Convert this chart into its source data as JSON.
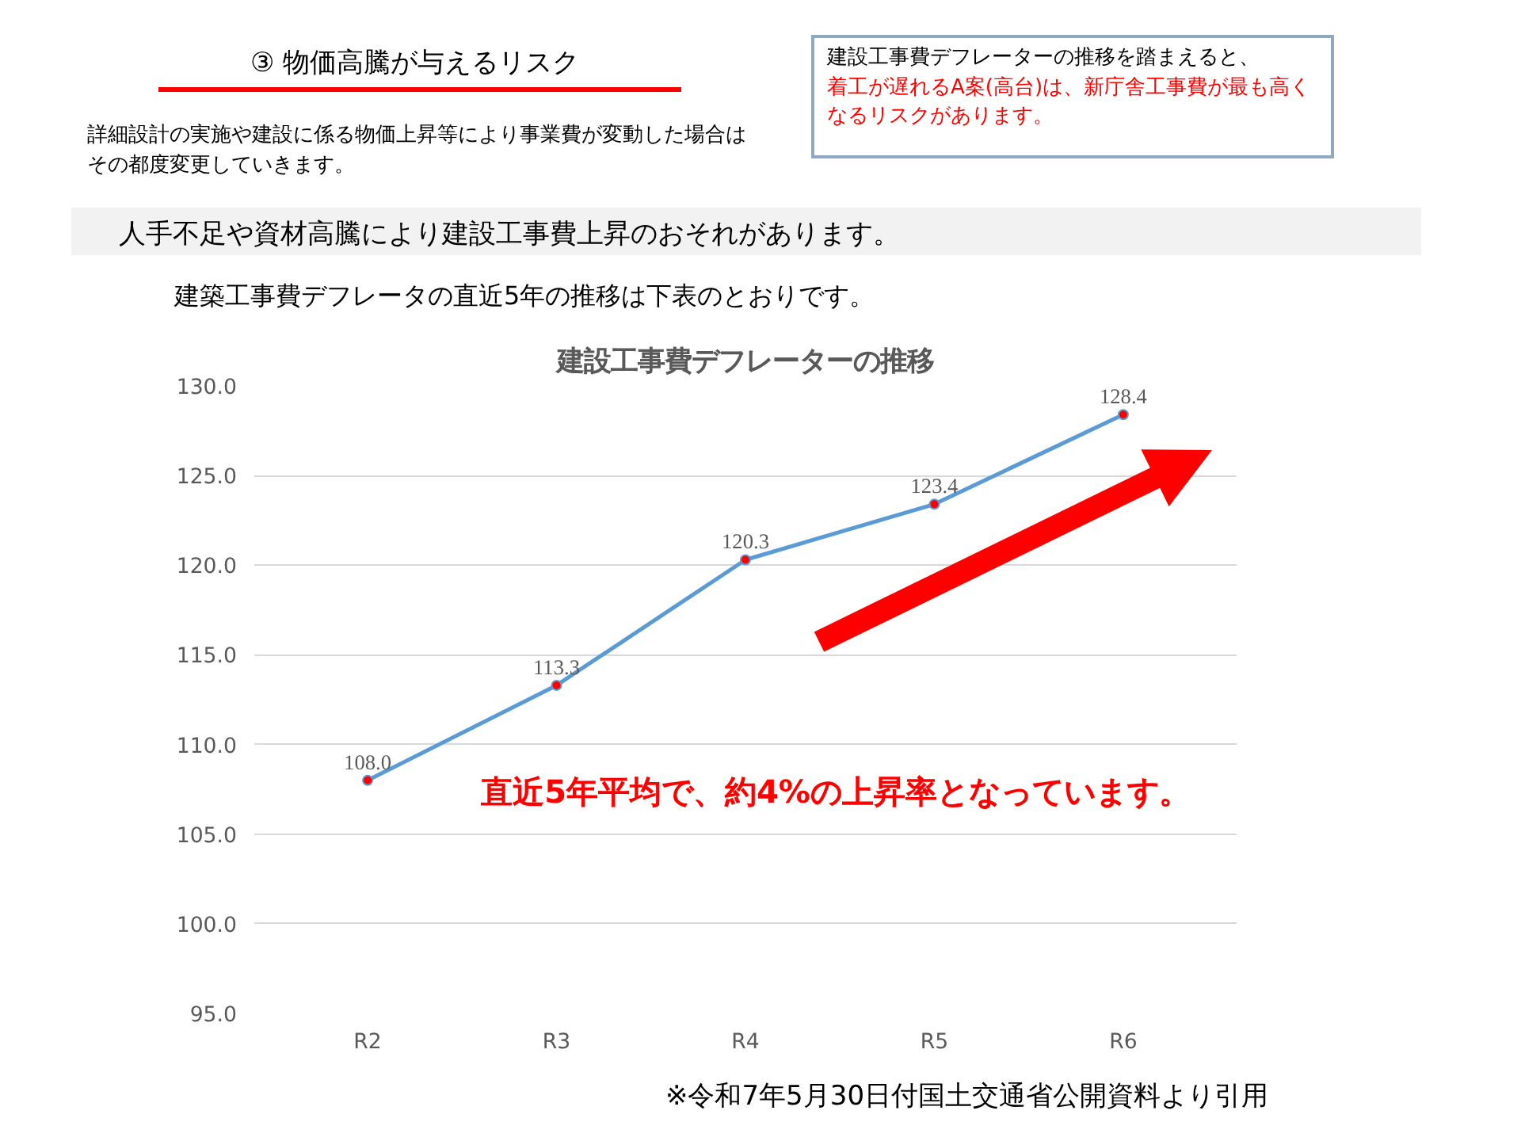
{
  "chart_data": {
    "type": "line",
    "title": "建設工事費デフレーターの推移",
    "categories": [
      "R2",
      "R3",
      "R4",
      "R5",
      "R6"
    ],
    "series": [
      {
        "color": "#5b9bd5",
        "values": [
          108.0,
          113.3,
          120.3,
          123.4,
          128.4
        ],
        "value_labels": [
          "108.0",
          "113.3",
          "120.3",
          "123.4",
          "128.4"
        ]
      }
    ],
    "ylim": [
      95,
      130
    ],
    "yticks": [
      {
        "value": 95,
        "label": "95.0"
      },
      {
        "value": 100,
        "label": "100.0"
      },
      {
        "value": 105,
        "label": "105.0"
      },
      {
        "value": 110,
        "label": "110.0"
      },
      {
        "value": 115,
        "label": "115.0"
      },
      {
        "value": 120,
        "label": "120.0"
      },
      {
        "value": 125,
        "label": "125.0"
      },
      {
        "value": 130,
        "label": "130.0"
      }
    ],
    "grid": "y",
    "marker": "circle",
    "line_style": "solid",
    "annotations": [
      "③  物価高騰が与えるリスク",
      "詳細設計の実施や建設に係る物価上昇等により事業費が変動した場合はその都度変更していきます。",
      "建設工事費デフレーターの推移を踏まえると、",
      "着工が遅れるA案(高台)は、新庁舎工事費が最も高くなるリスクがあります。",
      "人手不足や資材高騰により建設工事費上昇のおそれがあります。",
      "建築工事費デフレータの直近5年の推移は下表のとおりです。",
      "直近5年平均で、約4%の上昇率となっています。",
      "※令和7年5月30日付国土交通省公開資料より引用"
    ]
  }
}
